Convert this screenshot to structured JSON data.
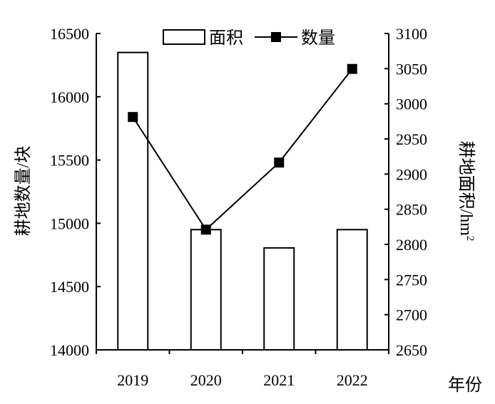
{
  "chart_data": {
    "type": "bar+line",
    "categories": [
      "2019",
      "2020",
      "2021",
      "2022"
    ],
    "xlabel": "年份",
    "series": [
      {
        "name": "面积",
        "type": "bar",
        "axis": "right",
        "values": [
          3073,
          2821,
          2795,
          2821
        ]
      },
      {
        "name": "数量",
        "type": "line",
        "axis": "left",
        "marker": "square",
        "values": [
          15840,
          14950,
          15480,
          16220
        ]
      }
    ],
    "left_axis": {
      "label": "耕地数量/块",
      "ylim": [
        14000,
        16500
      ],
      "ticks": [
        "14000",
        "14500",
        "15000",
        "15500",
        "16000",
        "16500"
      ]
    },
    "right_axis": {
      "label": "耕地面积/hm",
      "label_sup": "2",
      "ylim": [
        2650,
        3100
      ],
      "ticks": [
        "2650",
        "2700",
        "2750",
        "2800",
        "2850",
        "2900",
        "2950",
        "3000",
        "3050",
        "3100"
      ]
    },
    "legend": {
      "placement": "top-center",
      "entries": [
        "面积",
        "数量"
      ]
    },
    "grid": false,
    "colors": {
      "bar_fill": "#ffffff",
      "stroke": "#000000"
    }
  }
}
